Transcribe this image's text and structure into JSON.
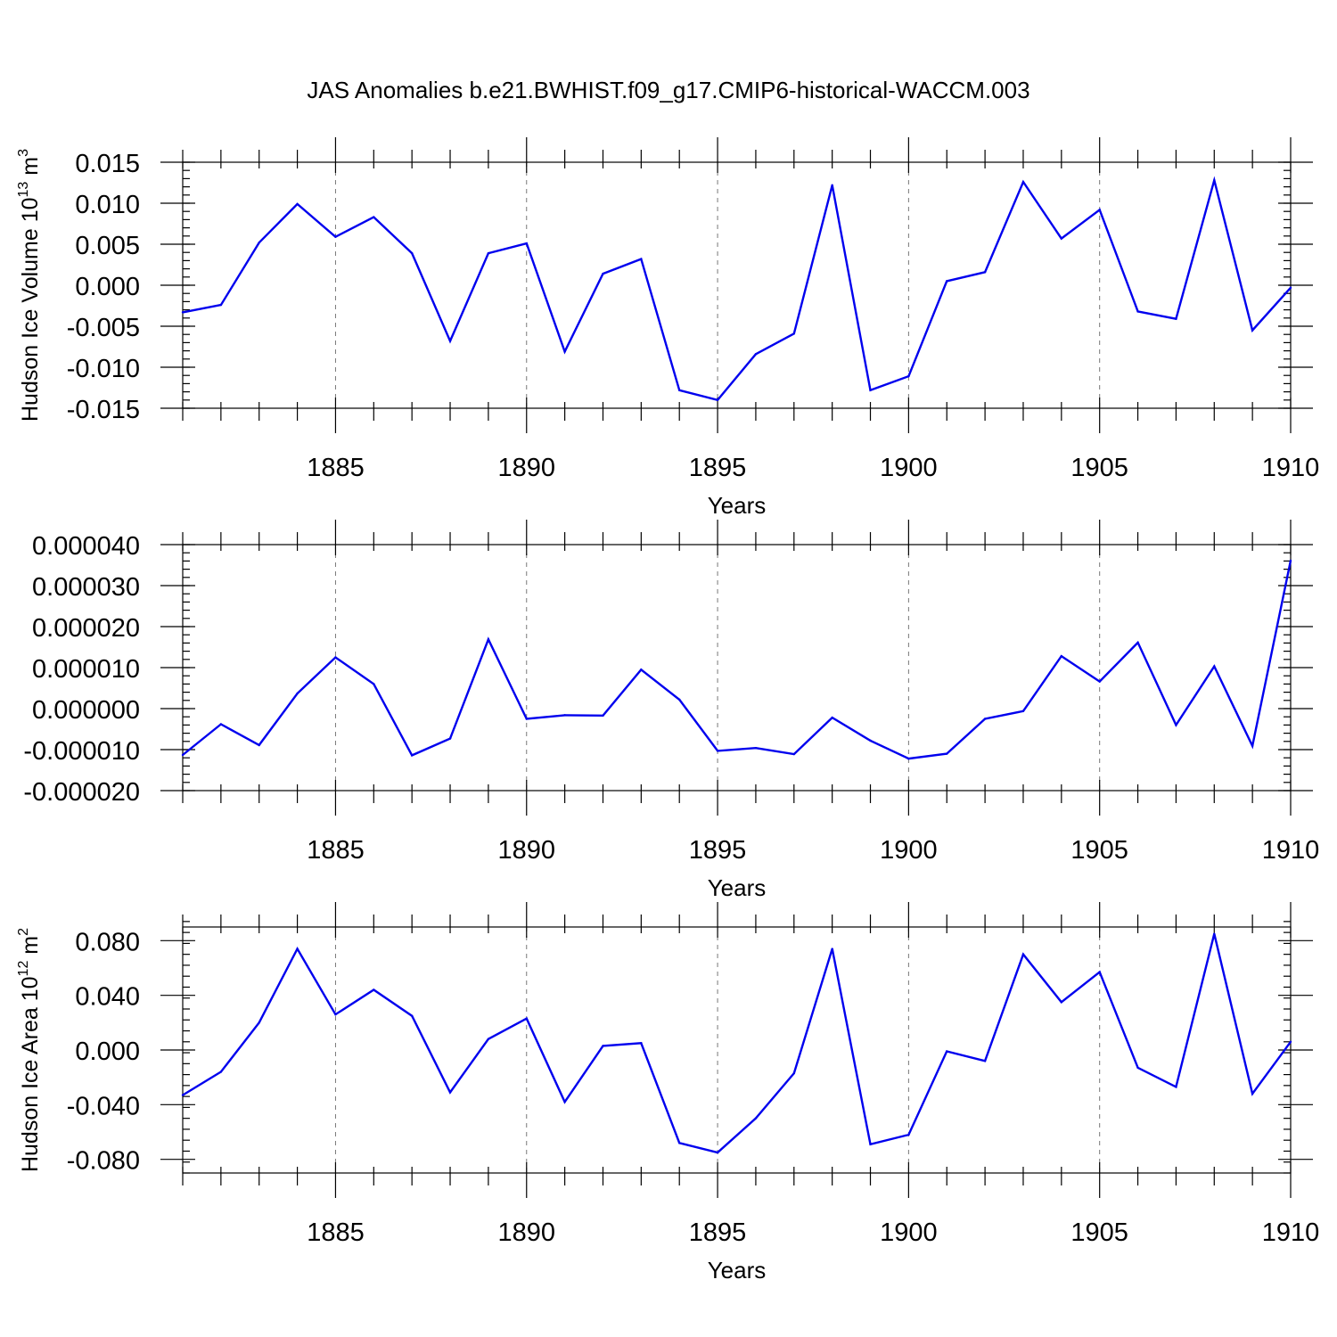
{
  "chart_data": {
    "title": "JAS Anomalies b.e21.BWHIST.f09_g17.CMIP6-historical-WACCM.003",
    "line_color": "#0000ee",
    "panels": [
      {
        "type": "line",
        "ylabel": "Hudson Ice Volume 10",
        "ylabel_exp": "13",
        "ylabel_unit": " m",
        "ylabel_unit_exp": "3",
        "xlabel": "Years",
        "xlim": [
          1881,
          1910
        ],
        "ylim": [
          -0.015,
          0.015
        ],
        "xticks": [
          "1885",
          "1890",
          "1895",
          "1900",
          "1905",
          "1910"
        ],
        "yticks": [
          "0.015",
          "0.010",
          "0.005",
          "0.000",
          "-0.005",
          "-0.010",
          "-0.015"
        ],
        "x": [
          1881,
          1882,
          1883,
          1884,
          1885,
          1886,
          1887,
          1888,
          1889,
          1890,
          1891,
          1892,
          1893,
          1894,
          1895,
          1896,
          1897,
          1898,
          1899,
          1900,
          1901,
          1902,
          1903,
          1904,
          1905,
          1906,
          1907,
          1908,
          1909,
          1910
        ],
        "values": [
          -0.0033,
          -0.0024,
          0.0052,
          0.0099,
          0.0059,
          0.0083,
          0.0039,
          -0.0068,
          0.0039,
          0.0051,
          -0.0081,
          0.0014,
          0.0032,
          -0.0128,
          -0.014,
          -0.0084,
          -0.0059,
          0.0122,
          -0.0128,
          -0.0111,
          0.0005,
          0.0016,
          0.0126,
          0.0057,
          0.0092,
          -0.0032,
          -0.0041,
          0.0128,
          -0.0055,
          -0.0003
        ]
      },
      {
        "type": "line",
        "ylabel": "",
        "ylabel_exp": "",
        "ylabel_unit": "",
        "ylabel_unit_exp": "",
        "xlabel": "Years",
        "xlim": [
          1881,
          1910
        ],
        "ylim": [
          -2e-05,
          4e-05
        ],
        "xticks": [
          "1885",
          "1890",
          "1895",
          "1900",
          "1905",
          "1910"
        ],
        "yticks": [
          "0.000040",
          "0.000030",
          "0.000020",
          "0.000010",
          "0.000000",
          "-0.000010",
          "-0.000020"
        ],
        "x": [
          1881,
          1882,
          1883,
          1884,
          1885,
          1886,
          1887,
          1888,
          1889,
          1890,
          1891,
          1892,
          1893,
          1894,
          1895,
          1896,
          1897,
          1898,
          1899,
          1900,
          1901,
          1902,
          1903,
          1904,
          1905,
          1906,
          1907,
          1908,
          1909,
          1910
        ],
        "values": [
          -1.13e-05,
          -3.8e-06,
          -8.9e-06,
          3.7e-06,
          1.25e-05,
          6e-06,
          -1.14e-05,
          -7.3e-06,
          1.69e-05,
          -2.5e-06,
          -1.6e-06,
          -1.7e-06,
          9.5e-06,
          2.2e-06,
          -1.03e-05,
          -9.6e-06,
          -1.11e-05,
          -2.2e-06,
          -7.8e-06,
          -1.22e-05,
          -1.1e-05,
          -2.5e-06,
          -6e-07,
          1.28e-05,
          6.6e-06,
          1.61e-05,
          -4e-06,
          1.03e-05,
          -9.1e-06,
          3.61e-05
        ]
      },
      {
        "type": "line",
        "ylabel": "Hudson Ice Area 10",
        "ylabel_exp": "12",
        "ylabel_unit": " m",
        "ylabel_unit_exp": "2",
        "xlabel": "Years",
        "xlim": [
          1881,
          1910
        ],
        "ylim": [
          -0.09,
          0.09
        ],
        "xticks": [
          "1885",
          "1890",
          "1895",
          "1900",
          "1905",
          "1910"
        ],
        "yticks": [
          "0.080",
          "0.040",
          "0.000",
          "-0.040",
          "-0.080"
        ],
        "x": [
          1881,
          1882,
          1883,
          1884,
          1885,
          1886,
          1887,
          1888,
          1889,
          1890,
          1891,
          1892,
          1893,
          1894,
          1895,
          1896,
          1897,
          1898,
          1899,
          1900,
          1901,
          1902,
          1903,
          1904,
          1905,
          1906,
          1907,
          1908,
          1909,
          1910
        ],
        "values": [
          -0.033,
          -0.016,
          0.02,
          0.074,
          0.026,
          0.044,
          0.025,
          -0.031,
          0.008,
          0.023,
          -0.038,
          0.003,
          0.005,
          -0.068,
          -0.075,
          -0.05,
          -0.017,
          0.074,
          -0.069,
          -0.062,
          -0.001,
          -0.008,
          0.07,
          0.035,
          0.057,
          -0.013,
          -0.027,
          0.085,
          -0.032,
          0.006
        ]
      }
    ]
  }
}
